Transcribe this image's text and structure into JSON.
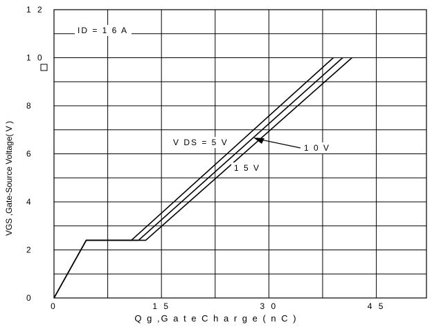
{
  "chart_data": {
    "type": "line",
    "title": "",
    "xlabel": "Q g ,G a t e  C h a r g e ( n C  )",
    "ylabel": "VGS ,Gate-Source Voltage( V )",
    "xlim": [
      0,
      52
    ],
    "ylim": [
      0,
      12
    ],
    "xticks": [
      {
        "value": 0,
        "label": "0"
      },
      {
        "value": 15,
        "label": "1 5"
      },
      {
        "value": 30,
        "label": "3 0"
      },
      {
        "value": 45,
        "label": "4 5"
      }
    ],
    "yticks": [
      {
        "value": 0,
        "label": "0"
      },
      {
        "value": 2,
        "label": "2"
      },
      {
        "value": 4,
        "label": "4"
      },
      {
        "value": 6,
        "label": "6"
      },
      {
        "value": 8,
        "label": "8"
      },
      {
        "value": 10,
        "label": "1 0"
      },
      {
        "value": 12,
        "label": "1 2"
      }
    ],
    "grid": true,
    "grid_x_step": 7.5,
    "grid_y_step": 1,
    "series": [
      {
        "name": "V DS = 5 V",
        "x": [
          0,
          4.5,
          10.8,
          39.0
        ],
        "y": [
          0,
          2.4,
          2.4,
          10
        ]
      },
      {
        "name": "1 0 V",
        "x": [
          0,
          4.5,
          11.8,
          40.3
        ],
        "y": [
          0,
          2.4,
          2.4,
          10
        ]
      },
      {
        "name": "1 5 V",
        "x": [
          0,
          4.5,
          12.8,
          41.6
        ],
        "y": [
          0,
          2.4,
          2.4,
          10
        ]
      }
    ],
    "annotations": {
      "id_label": "ID = 1 6 A",
      "vds_label": "V DS  = 5 V",
      "ten_label": "1 0 V",
      "fifteen_label": "1 5 V"
    }
  }
}
